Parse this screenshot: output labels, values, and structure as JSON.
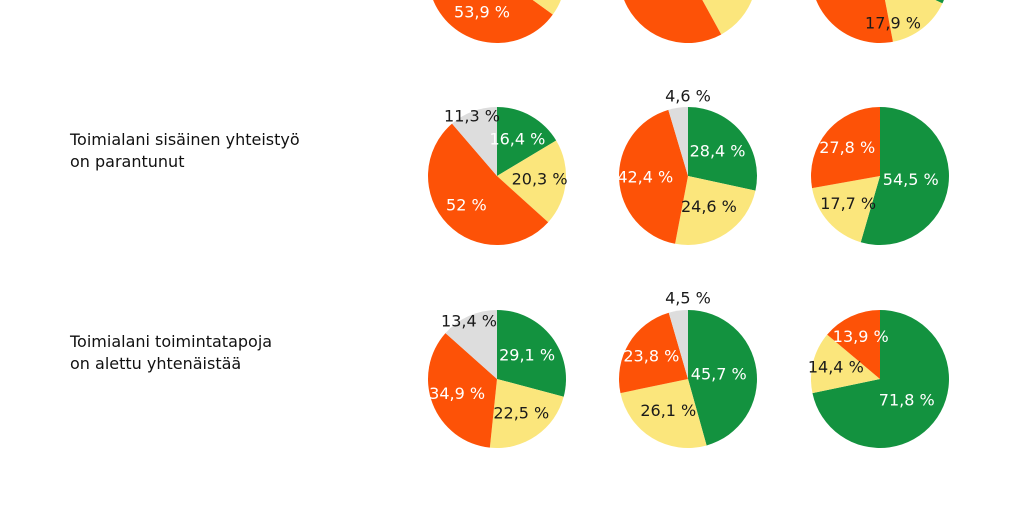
{
  "colors": {
    "green": "#13923f",
    "yellow": "#fbe67c",
    "orange": "#fd5207",
    "grey": "#dddddd",
    "dark_text": "#1a1a1a",
    "light_text": "#ffffff"
  },
  "rows": [
    {
      "label_lines": []
    },
    {
      "label_lines": [
        "Toimialani sisäinen yhteistyö",
        "on parantunut"
      ]
    },
    {
      "label_lines": [
        "Toimialani toimintatapoja",
        "on alettu yhtenäistää"
      ]
    }
  ],
  "chart_data": [
    {
      "type": "pie",
      "row": 0,
      "column": 0,
      "clipped_at_top": true,
      "slices": [
        {
          "color_key": "orange",
          "label": "53,9 %"
        }
      ]
    },
    {
      "type": "pie",
      "row": 0,
      "column": 1,
      "clipped_at_top": true,
      "slices": []
    },
    {
      "type": "pie",
      "row": 0,
      "column": 2,
      "clipped_at_top": true,
      "slices": [
        {
          "color_key": "yellow",
          "label": "17,9 %"
        }
      ]
    },
    {
      "type": "pie",
      "row": 1,
      "column": 0,
      "slices": [
        {
          "value": 16.4,
          "label": "16,4 %",
          "color_key": "green"
        },
        {
          "value": 20.3,
          "label": "20,3 %",
          "color_key": "yellow"
        },
        {
          "value": 52,
          "label": "52 %",
          "color_key": "orange"
        },
        {
          "value": 11.3,
          "label": "11,3 %",
          "color_key": "grey"
        }
      ]
    },
    {
      "type": "pie",
      "row": 1,
      "column": 1,
      "slices": [
        {
          "value": 28.4,
          "label": "28,4 %",
          "color_key": "green"
        },
        {
          "value": 24.6,
          "label": "24,6 %",
          "color_key": "yellow"
        },
        {
          "value": 42.4,
          "label": "42,4 %",
          "color_key": "orange"
        },
        {
          "value": 4.6,
          "label": "4,6 %",
          "color_key": "grey"
        }
      ]
    },
    {
      "type": "pie",
      "row": 1,
      "column": 2,
      "slices": [
        {
          "value": 54.5,
          "label": "54,5 %",
          "color_key": "green"
        },
        {
          "value": 17.7,
          "label": "17,7 %",
          "color_key": "yellow"
        },
        {
          "value": 27.8,
          "label": "27,8 %",
          "color_key": "orange"
        }
      ]
    },
    {
      "type": "pie",
      "row": 2,
      "column": 0,
      "slices": [
        {
          "value": 29.1,
          "label": "29,1 %",
          "color_key": "green"
        },
        {
          "value": 22.5,
          "label": "22,5 %",
          "color_key": "yellow"
        },
        {
          "value": 34.9,
          "label": "34,9 %",
          "color_key": "orange"
        },
        {
          "value": 13.4,
          "label": "13,4 %",
          "color_key": "grey"
        }
      ]
    },
    {
      "type": "pie",
      "row": 2,
      "column": 1,
      "slices": [
        {
          "value": 45.7,
          "label": "45,7 %",
          "color_key": "green"
        },
        {
          "value": 26.1,
          "label": "26,1 %",
          "color_key": "yellow"
        },
        {
          "value": 23.8,
          "label": "23,8 %",
          "color_key": "orange"
        },
        {
          "value": 4.5,
          "label": "4,5 %",
          "color_key": "grey"
        }
      ]
    },
    {
      "type": "pie",
      "row": 2,
      "column": 2,
      "slices": [
        {
          "value": 71.8,
          "label": "71,8 %",
          "color_key": "green"
        },
        {
          "value": 14.4,
          "label": "14,4 %",
          "color_key": "yellow"
        },
        {
          "value": 13.9,
          "label": "13,9 %",
          "color_key": "orange"
        }
      ]
    }
  ]
}
